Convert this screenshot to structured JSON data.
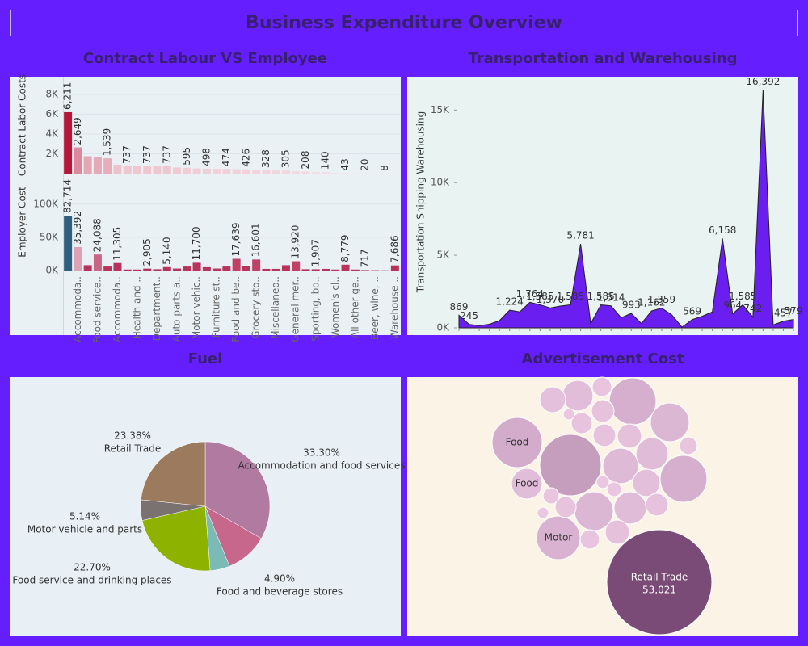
{
  "title": "Business Expenditure Overview",
  "chart_data": [
    {
      "type": "bar",
      "title": "Contract Labour VS Employee",
      "categories": [
        null,
        "Accommoda..",
        null,
        "Food service..",
        null,
        "Accommoda..",
        null,
        "Health and ..",
        null,
        "Department..",
        null,
        "Auto parts a..",
        null,
        "Motor vehic..",
        null,
        "Furniture st..",
        null,
        "Food and be..",
        null,
        "Grocery sto..",
        null,
        "Miscellaneo..",
        null,
        "General mer..",
        null,
        "Sporting, bo..",
        null,
        "Women's cl..",
        null,
        "All other ge..",
        null,
        "Beer, wine, ..",
        null,
        "Warehouse .."
      ],
      "grid": true,
      "series": [
        {
          "y_label": "Contract Labor Costs",
          "values": [
            6211,
            2649,
            1750,
            1650,
            1539,
            900,
            737,
            737,
            737,
            737,
            737,
            620,
            595,
            520,
            498,
            480,
            474,
            450,
            426,
            340,
            328,
            310,
            305,
            220,
            208,
            150,
            140,
            60,
            43,
            25,
            20,
            10,
            8,
            5
          ],
          "value_labels": [
            "6,211",
            "2,649",
            null,
            null,
            "1,539",
            null,
            "737",
            null,
            "737",
            null,
            "737",
            null,
            "595",
            null,
            "498",
            null,
            "474",
            null,
            "426",
            null,
            "328",
            null,
            "305",
            null,
            "208",
            null,
            "140",
            null,
            "43",
            null,
            "20",
            null,
            "8",
            null
          ],
          "color_range": [
            "#f6dfe5",
            "#b5173a"
          ],
          "ylim": [
            0,
            9800
          ],
          "yticks": [
            {
              "value": 2000,
              "label": "2K"
            },
            {
              "value": 4000,
              "label": "4K"
            },
            {
              "value": 6000,
              "label": "6K"
            },
            {
              "value": 8000,
              "label": "8K"
            }
          ]
        },
        {
          "y_label": "Employer Cost",
          "values": [
            82714,
            35392,
            8000,
            24088,
            6000,
            11305,
            1500,
            1500,
            2905,
            2000,
            5140,
            3000,
            6000,
            11700,
            5000,
            3000,
            6000,
            17639,
            7000,
            16601,
            2500,
            2500,
            8000,
            13920,
            2000,
            1907,
            2500,
            1500,
            8779,
            1500,
            717,
            500,
            300,
            7686
          ],
          "value_labels": [
            "82,714",
            "35,392",
            null,
            "24,088",
            null,
            "11,305",
            null,
            null,
            "2,905",
            null,
            "5,140",
            null,
            null,
            "11,700",
            null,
            null,
            null,
            "17,639",
            null,
            "16,601",
            null,
            null,
            null,
            "13,920",
            null,
            "1,907",
            null,
            null,
            "8,779",
            null,
            "717",
            null,
            null,
            "7,686"
          ],
          "colors": [
            "#2f5e7e",
            "#dca3b5",
            "#b8325c",
            "#c86686",
            "#b8325c",
            "#b8325c",
            "#b8325c",
            "#b8325c",
            "#b8325c",
            "#b8325c",
            "#b8325c",
            "#b8325c",
            "#b8325c",
            "#b8325c",
            "#b8325c",
            "#b8325c",
            "#b8325c",
            "#c04068",
            "#b8325c",
            "#c04068",
            "#b8325c",
            "#b8325c",
            "#b8325c",
            "#c04068",
            "#b8325c",
            "#b8325c",
            "#b8325c",
            "#b8325c",
            "#b8325c",
            "#b8325c",
            "#b8325c",
            "#b8325c",
            "#b8325c",
            "#b8325c"
          ],
          "ylim": [
            0,
            146000
          ],
          "yticks": [
            {
              "value": 0,
              "label": "0K"
            },
            {
              "value": 50000,
              "label": "50K"
            },
            {
              "value": 100000,
              "label": "100K"
            }
          ]
        }
      ]
    },
    {
      "type": "area",
      "title": "Transportation and Warehousing",
      "y_label": "Transportation Shipping Warehousing",
      "values": [
        869,
        245,
        150,
        250,
        500,
        1224,
        1100,
        1764,
        1585,
        1370,
        1500,
        1585,
        5781,
        300,
        1585,
        1514,
        700,
        993,
        300,
        1162,
        1359,
        900,
        50,
        569,
        800,
        1100,
        6158,
        964,
        1585,
        742,
        16392,
        200,
        457,
        579
      ],
      "value_labels": [
        "869",
        "245",
        null,
        null,
        null,
        "1,224",
        null,
        "1,764",
        "1,585",
        "1,370",
        null,
        "1,585",
        "5,781",
        null,
        "1,585",
        "1,514",
        null,
        "993",
        null,
        "1,162",
        "1,359",
        null,
        null,
        "569",
        null,
        null,
        "6,158",
        "964",
        "1,585",
        "742",
        "16,392",
        null,
        "457",
        "579"
      ],
      "color": "#6a1ff0",
      "ylim": [
        0,
        17300
      ],
      "yticks": [
        {
          "value": 0,
          "label": "0K"
        },
        {
          "value": 5000,
          "label": "5K"
        },
        {
          "value": 10000,
          "label": "10K"
        },
        {
          "value": 15000,
          "label": "15K"
        }
      ]
    },
    {
      "type": "pie",
      "title": "Fuel",
      "categories": [
        "Accommodation and food services",
        null,
        "Food and beverage stores",
        "Food service and drinking places",
        "Motor vehicle and parts",
        "Retail Trade"
      ],
      "values": [
        33.3,
        10.58,
        4.9,
        22.7,
        5.14,
        23.38
      ],
      "value_labels": [
        "33.30%",
        null,
        "4.90%",
        "22.70%",
        "5.14%",
        "23.38%"
      ],
      "colors": [
        "#b07aa1",
        "#c7678b",
        "#7cbab5",
        "#8db300",
        "#7a7271",
        "#9c7a5e"
      ]
    },
    {
      "type": "bubble",
      "title": "Advertisement Cost",
      "categories": [
        "Retail Trade",
        null,
        "Food",
        null,
        null,
        null,
        "Food",
        "Motor",
        null,
        null,
        null,
        null,
        null,
        null,
        null,
        null,
        null,
        null,
        null,
        null,
        null,
        null,
        null,
        null,
        null,
        null,
        null,
        null,
        null,
        null
      ],
      "values": [
        53021,
        18120,
        12060,
        10550,
        10550,
        7230,
        4530,
        9150,
        4530,
        6070,
        5020,
        7230,
        5020,
        3630,
        2460,
        2460,
        2820,
        2120,
        3210,
        2120,
        2460,
        2820,
        1810,
        1250,
        1520,
        1810,
        615,
        800,
        1020,
        615
      ],
      "value_labels": [
        "53,021",
        null,
        null,
        null,
        null,
        null,
        null,
        null,
        null,
        null,
        null,
        null,
        null,
        null,
        null,
        null,
        null,
        null,
        null,
        null,
        null,
        null,
        null,
        null,
        null,
        null,
        null,
        null,
        null,
        null
      ],
      "color_range": [
        "#ecc8e2",
        "#7a4b77"
      ]
    }
  ]
}
